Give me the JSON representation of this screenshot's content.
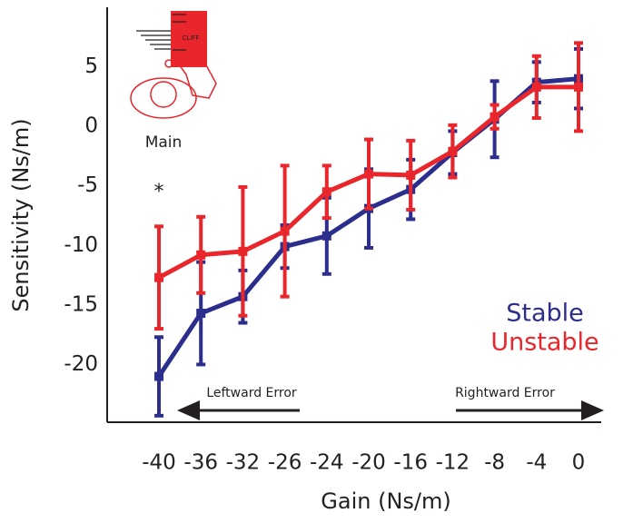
{
  "chart_data": {
    "type": "line",
    "x_label": "Gain (Ns/m)",
    "y_label": "Sensitivity (Ns/m)",
    "categories": [
      "-40",
      "-36",
      "-32",
      "-26",
      "-24",
      "-20",
      "-16",
      "-12",
      "-8",
      "-4",
      "0"
    ],
    "series": [
      {
        "name": "Stable",
        "color": "#2b2e8c",
        "values": [
          -21.0,
          -15.7,
          -14.3,
          -10.1,
          -9.2,
          -6.9,
          -5.3,
          -2.2,
          0.6,
          3.7,
          4.0
        ],
        "errors": [
          3.3,
          4.3,
          2.2,
          1.8,
          3.2,
          3.3,
          2.5,
          1.8,
          3.2,
          1.7,
          2.5
        ]
      },
      {
        "name": "Unstable",
        "color": "#e8262b",
        "values": [
          -12.7,
          -10.8,
          -10.5,
          -8.8,
          -5.5,
          -4.0,
          -4.1,
          -2.1,
          0.8,
          3.3,
          3.3
        ],
        "errors": [
          4.3,
          3.2,
          5.4,
          5.5,
          2.2,
          2.9,
          2.9,
          2.2,
          1.0,
          2.6,
          3.7
        ]
      }
    ],
    "ylim": [
      -25,
      10
    ],
    "yticks": [
      -20,
      -15,
      -10,
      -5,
      0,
      5
    ],
    "legend": "right",
    "annotations": {
      "significance": "*",
      "left_arrow": "Leftward Error",
      "right_arrow": "Rightward Error",
      "inset_caption": "Main",
      "inset_label": "CLIFF"
    }
  }
}
